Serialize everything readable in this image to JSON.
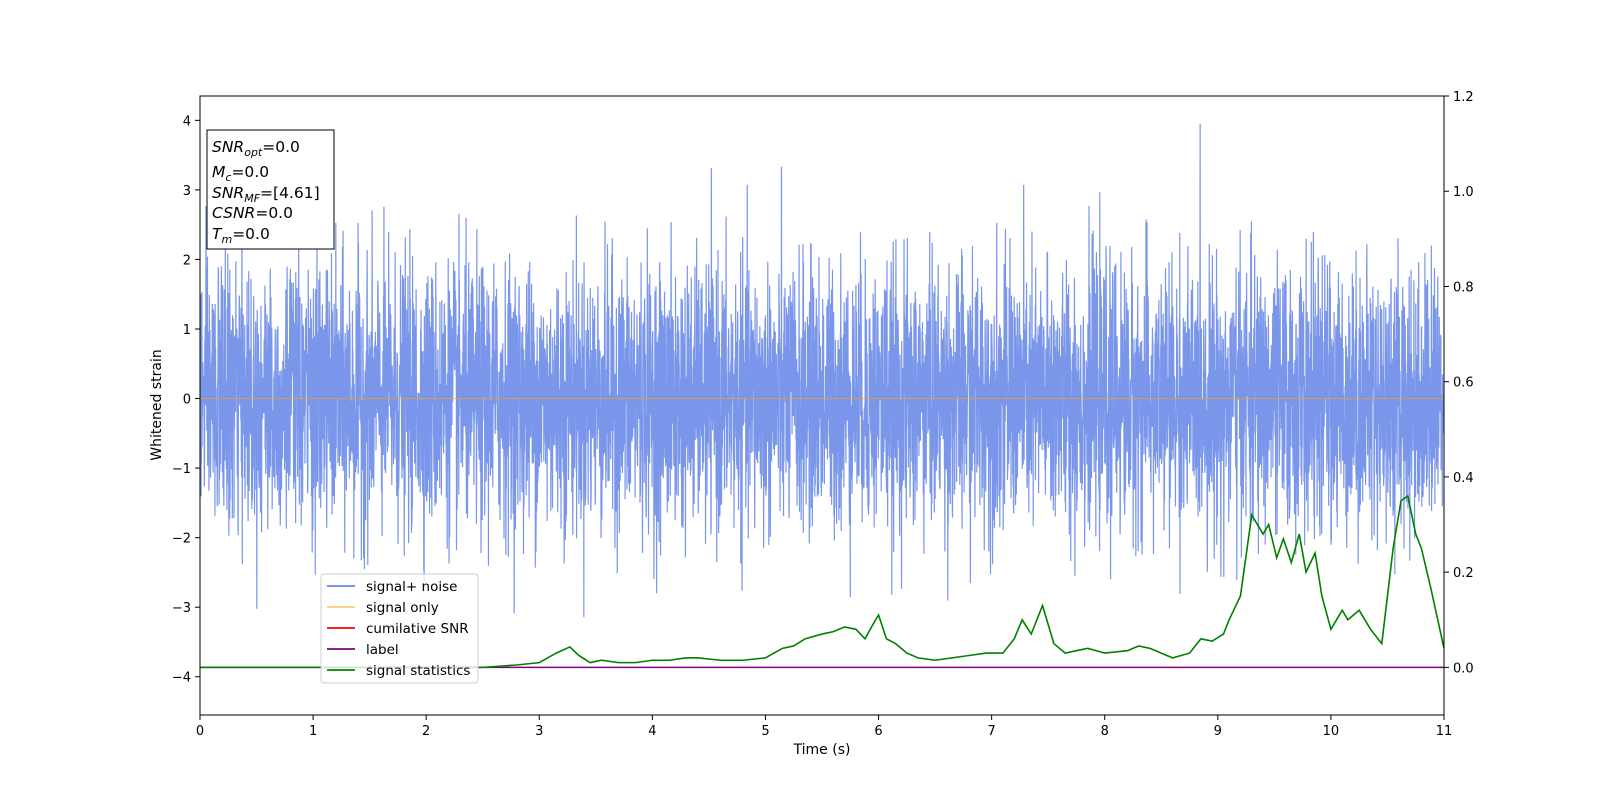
{
  "chart_data": {
    "type": "line",
    "xlabel": "Time (s)",
    "ylabel": "Whitened strain",
    "xlim": [
      0,
      11
    ],
    "ylim": [
      -4.55,
      4.35
    ],
    "y2lim": [
      -0.1,
      1.2
    ],
    "xticks": [
      0,
      1,
      2,
      3,
      4,
      5,
      6,
      7,
      8,
      9,
      10,
      11
    ],
    "yticks": [
      -4,
      -3,
      -2,
      -1,
      0,
      1,
      2,
      3,
      4
    ],
    "y2ticks": [
      0.0,
      0.2,
      0.4,
      0.6,
      0.8,
      1.0,
      1.2
    ],
    "y2tick_labels": [
      "0.0",
      "0.2",
      "0.4",
      "0.6",
      "0.8",
      "1.0",
      "1.2"
    ],
    "grid": false,
    "legend_position": "lower-left",
    "info_box": {
      "snr_opt": {
        "sym": "SNR",
        "sub": "opt",
        "val": "=0.0"
      },
      "mc": {
        "sym": "M",
        "sub": "c",
        "val": "=0.0"
      },
      "snr_mf": {
        "sym": "SNR",
        "sub": "MF",
        "val": "=[4.61]"
      },
      "csnr": {
        "sym": "CSNR",
        "sub": "",
        "val": "=0.0"
      },
      "tm": {
        "sym": "T",
        "sub": "m",
        "val": "=0.0"
      }
    },
    "series": [
      {
        "name": "signal+ noise",
        "color": "#4169e1",
        "axis": "left",
        "kind": "gaussian-noise",
        "duration": 11,
        "envelope": [
          [
            0,
            1.5
          ],
          [
            11,
            1.5
          ]
        ],
        "clip": [
          -4.2,
          3.95
        ]
      },
      {
        "name": "signal only",
        "color": "#ffa500",
        "axis": "left",
        "x": [
          0,
          11
        ],
        "y": [
          0,
          0
        ]
      },
      {
        "name": "cumilative SNR",
        "color": "#ff0000",
        "axis": "right",
        "x": [],
        "y": []
      },
      {
        "name": "label",
        "color": "#800080",
        "axis": "right",
        "x": [
          0,
          11
        ],
        "y": [
          0,
          0
        ]
      },
      {
        "name": "signal statistics",
        "color": "#008000",
        "axis": "right",
        "x": [
          0,
          0.5,
          1.0,
          1.5,
          2.0,
          2.5,
          2.8,
          3.0,
          3.15,
          3.27,
          3.35,
          3.45,
          3.55,
          3.7,
          3.85,
          4.0,
          4.15,
          4.3,
          4.4,
          4.6,
          4.8,
          5.0,
          5.15,
          5.25,
          5.35,
          5.5,
          5.6,
          5.7,
          5.8,
          5.88,
          5.95,
          6.0,
          6.07,
          6.15,
          6.25,
          6.35,
          6.5,
          6.65,
          6.8,
          6.95,
          7.1,
          7.2,
          7.27,
          7.35,
          7.45,
          7.55,
          7.65,
          7.75,
          7.85,
          8.0,
          8.2,
          8.3,
          8.4,
          8.6,
          8.75,
          8.85,
          8.95,
          9.05,
          9.1,
          9.2,
          9.3,
          9.4,
          9.45,
          9.52,
          9.58,
          9.65,
          9.72,
          9.78,
          9.86,
          9.92,
          10.0,
          10.1,
          10.15,
          10.25,
          10.35,
          10.45,
          10.55,
          10.62,
          10.68,
          10.75,
          10.8,
          10.88,
          11.0
        ],
        "y": [
          0.0,
          0.0,
          0.0,
          0.0,
          0.0,
          0.0,
          0.005,
          0.01,
          0.03,
          0.043,
          0.025,
          0.01,
          0.015,
          0.01,
          0.01,
          0.015,
          0.015,
          0.02,
          0.02,
          0.015,
          0.015,
          0.02,
          0.04,
          0.045,
          0.06,
          0.07,
          0.075,
          0.085,
          0.08,
          0.06,
          0.09,
          0.11,
          0.06,
          0.05,
          0.03,
          0.02,
          0.015,
          0.02,
          0.025,
          0.03,
          0.03,
          0.06,
          0.1,
          0.07,
          0.13,
          0.05,
          0.03,
          0.035,
          0.04,
          0.03,
          0.035,
          0.045,
          0.04,
          0.02,
          0.03,
          0.06,
          0.055,
          0.07,
          0.1,
          0.15,
          0.32,
          0.28,
          0.3,
          0.23,
          0.27,
          0.22,
          0.28,
          0.2,
          0.24,
          0.15,
          0.08,
          0.12,
          0.1,
          0.12,
          0.08,
          0.05,
          0.25,
          0.35,
          0.36,
          0.28,
          0.25,
          0.17,
          0.04
        ]
      }
    ]
  }
}
